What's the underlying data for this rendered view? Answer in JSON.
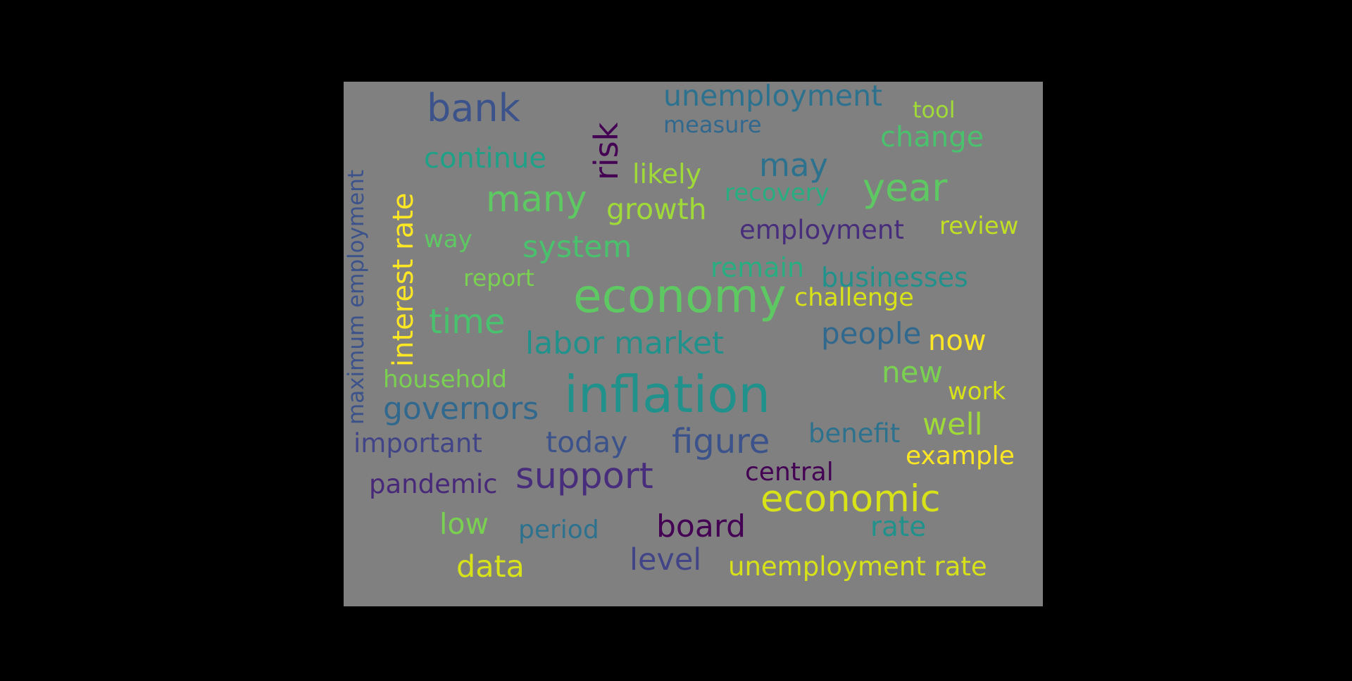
{
  "words": [
    {
      "text": "inflation",
      "color": "#21918c"
    },
    {
      "text": "economy",
      "color": "#5ec962"
    },
    {
      "text": "economic",
      "color": "#d8e219"
    },
    {
      "text": "bank",
      "color": "#3b528b"
    },
    {
      "text": "risk",
      "color": "#440154"
    },
    {
      "text": "unemployment",
      "color": "#2c728e"
    },
    {
      "text": "tool",
      "color": "#a0da39"
    },
    {
      "text": "measure",
      "color": "#31688e"
    },
    {
      "text": "change",
      "color": "#4ac16d"
    },
    {
      "text": "interest rate",
      "color": "#fde725"
    },
    {
      "text": "maximum employment",
      "color": "#3b528b"
    },
    {
      "text": "continue",
      "color": "#1fa187"
    },
    {
      "text": "likely",
      "color": "#a0da39"
    },
    {
      "text": "may",
      "color": "#2c728e"
    },
    {
      "text": "year",
      "color": "#5ec962"
    },
    {
      "text": "many",
      "color": "#5ec962"
    },
    {
      "text": "growth",
      "color": "#a0da39"
    },
    {
      "text": "recovery",
      "color": "#28ae80"
    },
    {
      "text": "employment",
      "color": "#472d7b"
    },
    {
      "text": "review",
      "color": "#c2df23"
    },
    {
      "text": "way",
      "color": "#5ec962"
    },
    {
      "text": "system",
      "color": "#4ac16d"
    },
    {
      "text": "remain",
      "color": "#28ae80"
    },
    {
      "text": "businesses",
      "color": "#21918c"
    },
    {
      "text": "report",
      "color": "#7ad151"
    },
    {
      "text": "challenge",
      "color": "#d8e219"
    },
    {
      "text": "time",
      "color": "#4ac16d"
    },
    {
      "text": "labor market",
      "color": "#21918c"
    },
    {
      "text": "people",
      "color": "#31688e"
    },
    {
      "text": "now",
      "color": "#fde725"
    },
    {
      "text": "household",
      "color": "#7ad151"
    },
    {
      "text": "new",
      "color": "#7ad151"
    },
    {
      "text": "work",
      "color": "#d8e219"
    },
    {
      "text": "governors",
      "color": "#31688e"
    },
    {
      "text": "benefit",
      "color": "#2c728e"
    },
    {
      "text": "well",
      "color": "#a0da39"
    },
    {
      "text": "important",
      "color": "#414487"
    },
    {
      "text": "today",
      "color": "#3b528b"
    },
    {
      "text": "figure",
      "color": "#3b528b"
    },
    {
      "text": "example",
      "color": "#fde725"
    },
    {
      "text": "central",
      "color": "#440154"
    },
    {
      "text": "pandemic",
      "color": "#482878"
    },
    {
      "text": "support",
      "color": "#472d7b"
    },
    {
      "text": "low",
      "color": "#7ad151"
    },
    {
      "text": "period",
      "color": "#2c728e"
    },
    {
      "text": "board",
      "color": "#440154"
    },
    {
      "text": "rate",
      "color": "#21918c"
    },
    {
      "text": "data",
      "color": "#d8e219"
    },
    {
      "text": "level",
      "color": "#414487"
    },
    {
      "text": "unemployment rate",
      "color": "#d8e219"
    }
  ]
}
